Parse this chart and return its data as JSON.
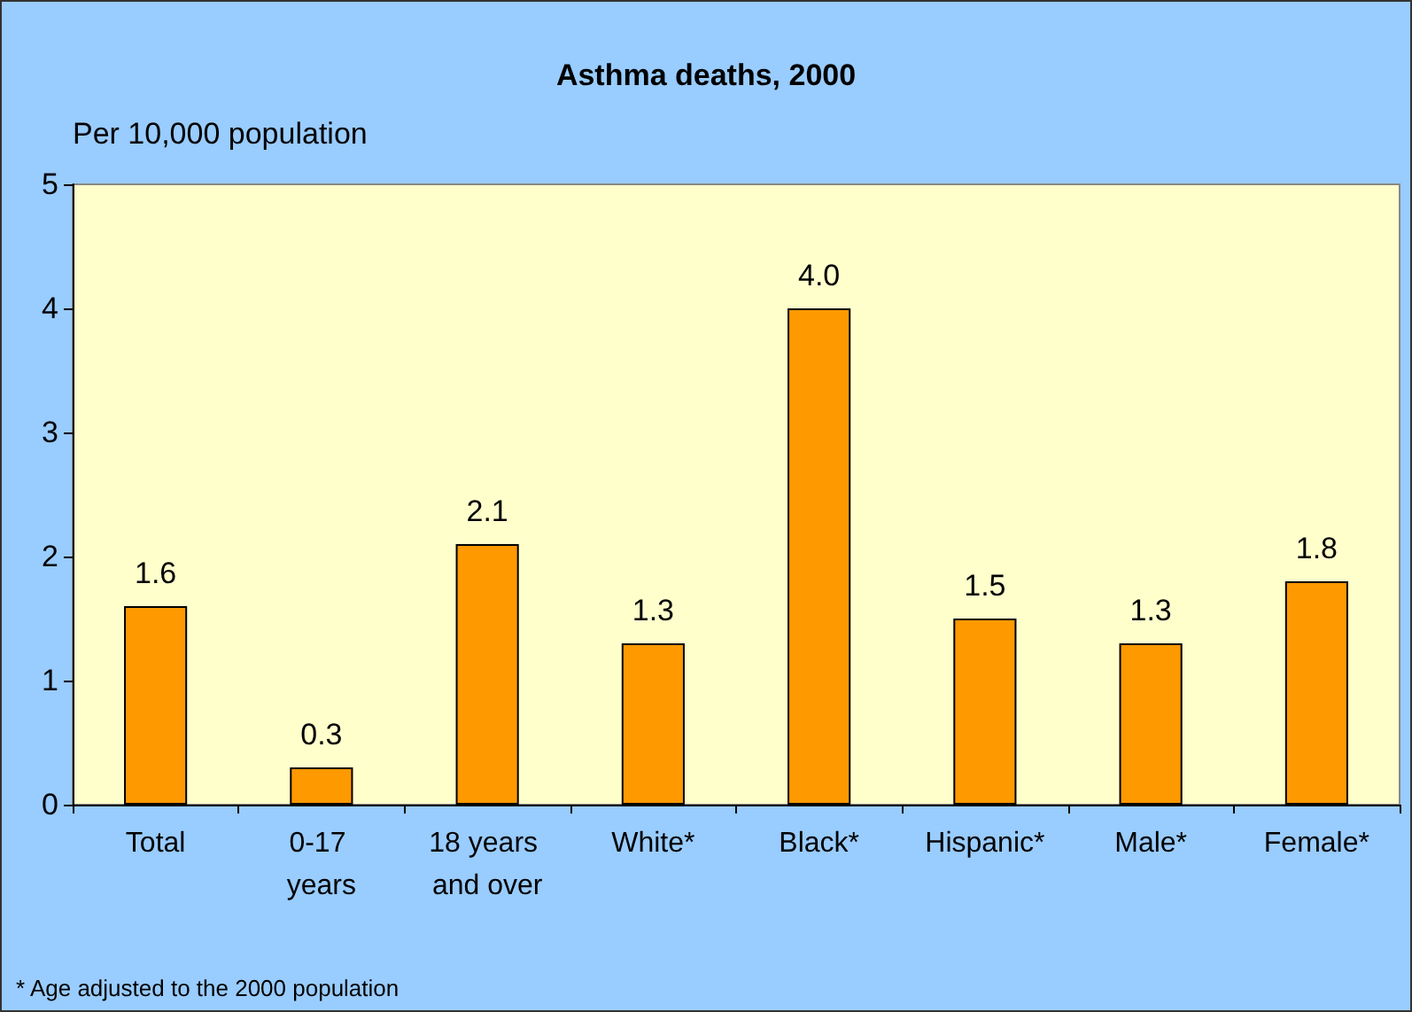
{
  "chart_data": {
    "type": "bar",
    "title": "Asthma deaths, 2000",
    "ylabel": "Per 10,000 population",
    "categories": [
      "Total",
      "0-17 years",
      "18 years and over",
      "White*",
      "Black*",
      "Hispanic*",
      "Male*",
      "Female*"
    ],
    "values": [
      1.6,
      0.3,
      2.1,
      1.3,
      4.0,
      1.5,
      1.3,
      1.8
    ],
    "color": "#ff9900",
    "value_labels": [
      "1.6",
      "0.3",
      "2.1",
      "1.3",
      "4.0",
      "1.5",
      "1.3",
      "1.8"
    ],
    "ylim": [
      0,
      5
    ],
    "yticks": [
      0,
      1,
      2,
      3,
      4,
      5
    ],
    "grid": false,
    "annotations": [
      "* Age adjusted to the 2000 population"
    ]
  }
}
